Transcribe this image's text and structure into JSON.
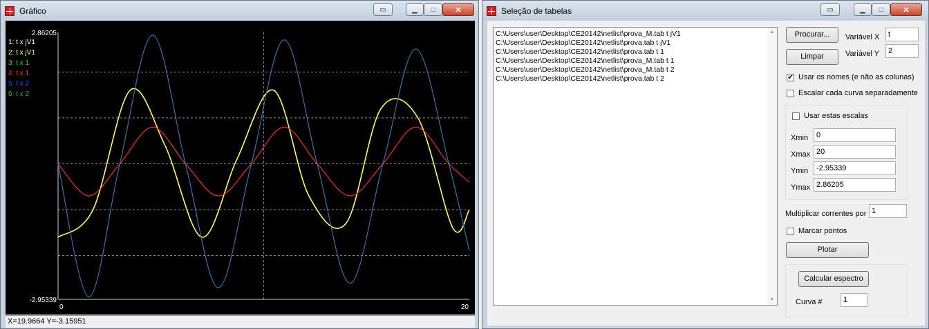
{
  "grafico_window": {
    "title": "Gráfico",
    "status": "X=19.9664 Y=-3.15951",
    "plot": {
      "y_max_label": "2.86205",
      "y_min_label": "-2.95339",
      "x_min_label": "0",
      "x_max_label": "20",
      "legend": [
        {
          "label": "1: t x jV1",
          "color": "#ffffff"
        },
        {
          "label": "2: t x jV1",
          "color": "#ffff66"
        },
        {
          "label": "3: t x 1",
          "color": "#33cc33"
        },
        {
          "label": "4: t x 1",
          "color": "#ff3333"
        },
        {
          "label": "5: t x 2",
          "color": "#3344ff"
        },
        {
          "label": "6: t x 2",
          "color": "#33aa55"
        }
      ]
    }
  },
  "chart_data": {
    "type": "line",
    "xlim": [
      0,
      20
    ],
    "ylim": [
      -2.95339,
      2.86205
    ],
    "grid": true,
    "legend_placement": "top-left",
    "x_ticks": [
      "0",
      "20"
    ],
    "y_ticks": [
      "-2.95339",
      "2.86205"
    ],
    "series": [
      {
        "name": "2: t x jV1",
        "color": "#ffff66",
        "x": [
          0,
          1.7,
          3.5,
          5.2,
          7.0,
          8.7,
          10.5,
          12.2,
          14.0,
          15.7,
          17.5,
          19.2,
          20
        ],
        "y": [
          -1.6,
          -1.0,
          1.6,
          0.4,
          -1.6,
          0.1,
          1.6,
          -0.7,
          -1.3,
          1.2,
          1.0,
          -1.4,
          -1.0
        ]
      },
      {
        "name": "4: t x 1",
        "color": "#ff3333",
        "x": [
          0,
          1.5,
          3.0,
          4.6,
          6.2,
          7.8,
          9.4,
          11.0,
          12.6,
          14.2,
          15.8,
          17.4,
          19.0,
          20
        ],
        "y": [
          0.0,
          -0.7,
          0.0,
          0.8,
          0.0,
          -0.7,
          0.0,
          0.8,
          0.0,
          -0.7,
          0.0,
          0.8,
          0.0,
          -0.4
        ]
      },
      {
        "name": "5: t x 2",
        "color": "#3344ff",
        "x": [
          0,
          1.5,
          3.0,
          4.6,
          6.2,
          7.8,
          9.4,
          11.0,
          12.6,
          14.2,
          15.8,
          17.4,
          19.0,
          20
        ],
        "y": [
          0.0,
          -2.9,
          0.0,
          2.8,
          0.0,
          -2.7,
          0.0,
          2.7,
          0.0,
          -2.6,
          0.0,
          2.5,
          0.0,
          -1.9
        ]
      },
      {
        "name": "6: t x 2",
        "color": "#33aa55",
        "x": [
          0,
          1.5,
          3.0,
          4.6,
          6.2,
          7.8,
          9.4,
          11.0,
          12.6,
          14.2,
          15.8,
          17.4,
          19.0,
          20
        ],
        "y": [
          0.0,
          -2.9,
          0.0,
          2.8,
          0.0,
          -2.7,
          0.0,
          2.7,
          0.0,
          -2.6,
          0.0,
          2.5,
          0.0,
          -1.9
        ]
      }
    ]
  },
  "selecao_window": {
    "title": "Seleção de tabelas",
    "files": [
      "C:\\Users\\user\\Desktop\\CE20142\\netlist\\prova_M.tab t jV1",
      "C:\\Users\\user\\Desktop\\CE20142\\netlist\\prova.tab t jV1",
      "C:\\Users\\user\\Desktop\\CE20142\\netlist\\prova.tab t 1",
      "C:\\Users\\user\\Desktop\\CE20142\\netlist\\prova_M.tab t 1",
      "C:\\Users\\user\\Desktop\\CE20142\\netlist\\prova_M.tab t 2",
      "C:\\Users\\user\\Desktop\\CE20142\\netlist\\prova.tab t 2"
    ],
    "procurar_label": "Procurar...",
    "limpar_label": "Limpar",
    "varx_label": "Variável X",
    "varx_value": "t",
    "vary_label": "Variável Y",
    "vary_value": "2",
    "usar_nomes_label": "Usar os nomes (e não as colunas)",
    "usar_nomes_checked": "✔",
    "escalar_label": "Escalar cada curva separadamente",
    "usar_escalas_label": "Usar estas escalas",
    "xmin_label": "Xmin",
    "xmin_value": "0",
    "xmax_label": "Xmax",
    "xmax_value": "20",
    "ymin_label": "Ymin",
    "ymin_value": "-2.95339",
    "ymax_label": "Ymax",
    "ymax_value": "2.86205",
    "multiplicar_label": "Multiplicar correntes por",
    "multiplicar_value": "1",
    "marcar_label": "Marcar pontos",
    "plotar_label": "Plotar",
    "calcular_label": "Calcular espectro",
    "curva_label": "Curva #",
    "curva_value": "1"
  }
}
